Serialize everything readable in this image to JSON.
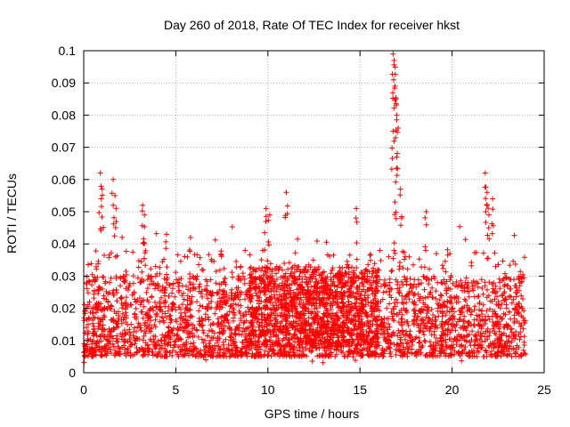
{
  "chart_data": {
    "type": "scatter",
    "title": "Day 260 of 2018, Rate Of TEC Index for receiver hkst",
    "xlabel": "GPS time / hours",
    "ylabel": "ROTI / TECUs",
    "xlim": [
      0,
      25
    ],
    "ylim": [
      0,
      0.1
    ],
    "x_ticks": [
      "0",
      "5",
      "10",
      "15",
      "20",
      "25"
    ],
    "y_ticks": [
      "0",
      "0.01",
      "0.02",
      "0.03",
      "0.04",
      "0.05",
      "0.06",
      "0.07",
      "0.08",
      "0.09",
      "0.1"
    ],
    "grid": true,
    "marker": "+",
    "color": "#ff0000",
    "series": [
      {
        "name": "ROTI",
        "density": {
          "x_range": [
            0,
            24
          ],
          "typical_band": [
            0.005,
            0.03
          ],
          "floor": 0.003
        },
        "peaks": [
          {
            "x": 0.9,
            "y": 0.062
          },
          {
            "x": 1.0,
            "y": 0.057
          },
          {
            "x": 1.6,
            "y": 0.06
          },
          {
            "x": 1.7,
            "y": 0.055
          },
          {
            "x": 3.2,
            "y": 0.052
          },
          {
            "x": 3.3,
            "y": 0.049
          },
          {
            "x": 4.5,
            "y": 0.043
          },
          {
            "x": 5.8,
            "y": 0.042
          },
          {
            "x": 9.9,
            "y": 0.051
          },
          {
            "x": 10.1,
            "y": 0.049
          },
          {
            "x": 11.0,
            "y": 0.056
          },
          {
            "x": 14.8,
            "y": 0.051
          },
          {
            "x": 16.8,
            "y": 0.099
          },
          {
            "x": 16.85,
            "y": 0.097
          },
          {
            "x": 16.9,
            "y": 0.089
          },
          {
            "x": 16.95,
            "y": 0.085
          },
          {
            "x": 17.0,
            "y": 0.08
          },
          {
            "x": 16.8,
            "y": 0.075
          },
          {
            "x": 17.0,
            "y": 0.067
          },
          {
            "x": 17.2,
            "y": 0.057
          },
          {
            "x": 16.9,
            "y": 0.053
          },
          {
            "x": 18.6,
            "y": 0.05
          },
          {
            "x": 21.8,
            "y": 0.062
          },
          {
            "x": 21.9,
            "y": 0.056
          },
          {
            "x": 22.2,
            "y": 0.054
          },
          {
            "x": 22.0,
            "y": 0.049
          }
        ]
      }
    ]
  }
}
